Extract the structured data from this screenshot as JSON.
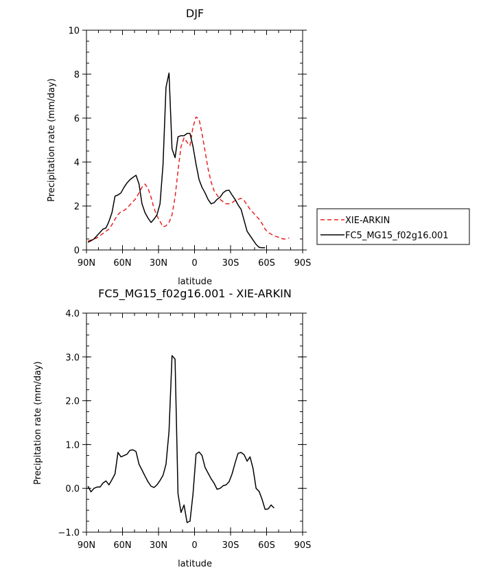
{
  "colors": {
    "obs": "#e8201c",
    "model": "#000000"
  },
  "chart_data": [
    {
      "type": "line",
      "title": "DJF",
      "xlabel": "latitude",
      "ylabel": "Precipitation rate (mm/day)",
      "xlim": [
        90,
        -90
      ],
      "ylim": [
        0,
        10
      ],
      "xticks": [
        {
          "value": 90,
          "label": "90N"
        },
        {
          "value": 60,
          "label": "60N"
        },
        {
          "value": 30,
          "label": "30N"
        },
        {
          "value": 0,
          "label": "0"
        },
        {
          "value": -30,
          "label": "30S"
        },
        {
          "value": -60,
          "label": "60S"
        },
        {
          "value": -90,
          "label": "90S"
        }
      ],
      "yticks": [
        {
          "value": 0,
          "label": "0"
        },
        {
          "value": 2,
          "label": "2"
        },
        {
          "value": 4,
          "label": "4"
        },
        {
          "value": 6,
          "label": "6"
        },
        {
          "value": 8,
          "label": "8"
        },
        {
          "value": 10,
          "label": "10"
        }
      ],
      "legend_position": "right",
      "series": [
        {
          "name": "XIE-ARKIN",
          "style": "dashed",
          "color": "#e8201c",
          "points": [
            [
              88.75,
              0.4
            ],
            [
              86.25,
              0.45
            ],
            [
              83.75,
              0.5
            ],
            [
              81.25,
              0.55
            ],
            [
              78.75,
              0.65
            ],
            [
              76.25,
              0.75
            ],
            [
              73.75,
              0.85
            ],
            [
              71.25,
              0.95
            ],
            [
              68.75,
              1.15
            ],
            [
              66.25,
              1.4
            ],
            [
              63.75,
              1.6
            ],
            [
              61.25,
              1.75
            ],
            [
              58.75,
              1.8
            ],
            [
              56.25,
              1.9
            ],
            [
              53.75,
              2.05
            ],
            [
              51.25,
              2.2
            ],
            [
              48.75,
              2.35
            ],
            [
              46.25,
              2.6
            ],
            [
              43.75,
              2.85
            ],
            [
              41.25,
              3.0
            ],
            [
              38.75,
              2.8
            ],
            [
              36.25,
              2.4
            ],
            [
              33.75,
              1.9
            ],
            [
              31.25,
              1.55
            ],
            [
              28.75,
              1.3
            ],
            [
              26.25,
              1.05
            ],
            [
              23.75,
              1.1
            ],
            [
              21.25,
              1.25
            ],
            [
              18.75,
              1.6
            ],
            [
              16.25,
              2.4
            ],
            [
              13.75,
              3.6
            ],
            [
              11.25,
              4.7
            ],
            [
              8.75,
              5.1
            ],
            [
              6.25,
              4.9
            ],
            [
              3.75,
              4.75
            ],
            [
              1.25,
              5.6
            ],
            [
              -1.25,
              6.05
            ],
            [
              -3.75,
              5.95
            ],
            [
              -6.25,
              5.3
            ],
            [
              -8.75,
              4.5
            ],
            [
              -11.25,
              3.7
            ],
            [
              -13.75,
              3.1
            ],
            [
              -16.25,
              2.7
            ],
            [
              -18.75,
              2.5
            ],
            [
              -21.25,
              2.3
            ],
            [
              -23.75,
              2.2
            ],
            [
              -26.25,
              2.1
            ],
            [
              -28.75,
              2.1
            ],
            [
              -31.25,
              2.15
            ],
            [
              -33.75,
              2.25
            ],
            [
              -36.25,
              2.3
            ],
            [
              -38.75,
              2.35
            ],
            [
              -41.25,
              2.25
            ],
            [
              -43.75,
              2.05
            ],
            [
              -46.25,
              1.85
            ],
            [
              -48.75,
              1.7
            ],
            [
              -51.25,
              1.55
            ],
            [
              -53.75,
              1.4
            ],
            [
              -56.25,
              1.2
            ],
            [
              -58.75,
              0.95
            ],
            [
              -61.25,
              0.8
            ],
            [
              -63.75,
              0.72
            ],
            [
              -66.25,
              0.65
            ],
            [
              -68.75,
              0.6
            ],
            [
              -71.25,
              0.55
            ],
            [
              -73.75,
              0.5
            ],
            [
              -76.25,
              0.5
            ],
            [
              -78.75,
              0.55
            ]
          ]
        },
        {
          "name": "FC5_MG15_f02g16.001",
          "style": "solid",
          "color": "#000000",
          "points": [
            [
              88.75,
              0.35
            ],
            [
              86.25,
              0.42
            ],
            [
              83.75,
              0.5
            ],
            [
              81.25,
              0.65
            ],
            [
              78.75,
              0.8
            ],
            [
              76.25,
              0.95
            ],
            [
              73.75,
              1.0
            ],
            [
              71.25,
              1.3
            ],
            [
              68.75,
              1.7
            ],
            [
              66.25,
              2.45
            ],
            [
              63.75,
              2.5
            ],
            [
              61.25,
              2.6
            ],
            [
              58.75,
              2.85
            ],
            [
              56.25,
              3.05
            ],
            [
              53.75,
              3.2
            ],
            [
              51.25,
              3.3
            ],
            [
              48.75,
              3.4
            ],
            [
              46.25,
              3.0
            ],
            [
              43.75,
              2.1
            ],
            [
              41.25,
              1.7
            ],
            [
              38.75,
              1.45
            ],
            [
              36.25,
              1.25
            ],
            [
              33.75,
              1.4
            ],
            [
              31.25,
              1.6
            ],
            [
              28.75,
              2.1
            ],
            [
              26.25,
              3.9
            ],
            [
              23.75,
              7.4
            ],
            [
              21.25,
              8.05
            ],
            [
              18.75,
              4.6
            ],
            [
              16.25,
              4.2
            ],
            [
              13.75,
              5.15
            ],
            [
              11.25,
              5.2
            ],
            [
              8.75,
              5.2
            ],
            [
              6.25,
              5.3
            ],
            [
              3.75,
              5.3
            ],
            [
              1.25,
              4.7
            ],
            [
              -1.25,
              3.9
            ],
            [
              -3.75,
              3.2
            ],
            [
              -6.25,
              2.85
            ],
            [
              -8.75,
              2.6
            ],
            [
              -11.25,
              2.3
            ],
            [
              -13.75,
              2.1
            ],
            [
              -16.25,
              2.15
            ],
            [
              -18.75,
              2.3
            ],
            [
              -21.25,
              2.4
            ],
            [
              -23.75,
              2.6
            ],
            [
              -26.25,
              2.7
            ],
            [
              -28.75,
              2.72
            ],
            [
              -31.25,
              2.5
            ],
            [
              -33.75,
              2.3
            ],
            [
              -36.25,
              2.05
            ],
            [
              -38.75,
              1.85
            ],
            [
              -41.25,
              1.35
            ],
            [
              -43.75,
              0.85
            ],
            [
              -46.25,
              0.65
            ],
            [
              -48.75,
              0.45
            ],
            [
              -51.25,
              0.25
            ],
            [
              -53.75,
              0.12
            ],
            [
              -56.25,
              0.1
            ],
            [
              -58.75,
              0.1
            ]
          ]
        }
      ]
    },
    {
      "type": "line",
      "title": "FC5_MG15_f02g16.001 - XIE-ARKIN",
      "xlabel": "latitude",
      "ylabel": "Precipitation rate (mm/day)",
      "xlim": [
        90,
        -90
      ],
      "ylim": [
        -1,
        4
      ],
      "xticks": [
        {
          "value": 90,
          "label": "90N"
        },
        {
          "value": 60,
          "label": "60N"
        },
        {
          "value": 30,
          "label": "30N"
        },
        {
          "value": 0,
          "label": "0"
        },
        {
          "value": -30,
          "label": "30S"
        },
        {
          "value": -60,
          "label": "60S"
        },
        {
          "value": -90,
          "label": "90S"
        }
      ],
      "yticks": [
        {
          "value": -1,
          "label": "−1.0"
        },
        {
          "value": 0,
          "label": "0.0"
        },
        {
          "value": 1,
          "label": "1.0"
        },
        {
          "value": 2,
          "label": "2.0"
        },
        {
          "value": 3,
          "label": "3.0"
        },
        {
          "value": 4,
          "label": "4.0"
        }
      ],
      "series": [
        {
          "style": "solid",
          "color": "#000000",
          "points": [
            [
              88.75,
              0.05
            ],
            [
              86.25,
              -0.08
            ],
            [
              83.75,
              0.0
            ],
            [
              81.25,
              0.03
            ],
            [
              78.75,
              0.03
            ],
            [
              76.25,
              0.12
            ],
            [
              73.75,
              0.17
            ],
            [
              71.25,
              0.08
            ],
            [
              68.75,
              0.2
            ],
            [
              66.25,
              0.33
            ],
            [
              63.75,
              0.82
            ],
            [
              61.25,
              0.72
            ],
            [
              58.75,
              0.75
            ],
            [
              56.25,
              0.78
            ],
            [
              53.75,
              0.87
            ],
            [
              51.25,
              0.88
            ],
            [
              48.75,
              0.84
            ],
            [
              46.25,
              0.55
            ],
            [
              43.75,
              0.42
            ],
            [
              41.25,
              0.28
            ],
            [
              38.75,
              0.15
            ],
            [
              36.25,
              0.05
            ],
            [
              33.75,
              0.02
            ],
            [
              31.25,
              0.08
            ],
            [
              28.75,
              0.18
            ],
            [
              26.25,
              0.3
            ],
            [
              23.75,
              0.55
            ],
            [
              21.25,
              1.3
            ],
            [
              18.75,
              3.03
            ],
            [
              16.25,
              2.95
            ],
            [
              13.75,
              -0.12
            ],
            [
              11.25,
              -0.55
            ],
            [
              8.75,
              -0.38
            ],
            [
              6.25,
              -0.78
            ],
            [
              3.75,
              -0.75
            ],
            [
              1.25,
              -0.12
            ],
            [
              -1.25,
              0.78
            ],
            [
              -3.75,
              0.83
            ],
            [
              -6.25,
              0.75
            ],
            [
              -8.75,
              0.48
            ],
            [
              -11.25,
              0.35
            ],
            [
              -13.75,
              0.22
            ],
            [
              -16.25,
              0.12
            ],
            [
              -18.75,
              -0.02
            ],
            [
              -21.25,
              0.0
            ],
            [
              -23.75,
              0.06
            ],
            [
              -26.25,
              0.08
            ],
            [
              -28.75,
              0.15
            ],
            [
              -31.25,
              0.33
            ],
            [
              -33.75,
              0.58
            ],
            [
              -36.25,
              0.8
            ],
            [
              -38.75,
              0.82
            ],
            [
              -41.25,
              0.77
            ],
            [
              -43.75,
              0.62
            ],
            [
              -46.25,
              0.72
            ],
            [
              -48.75,
              0.45
            ],
            [
              -51.25,
              0.0
            ],
            [
              -53.75,
              -0.07
            ],
            [
              -56.25,
              -0.25
            ],
            [
              -58.75,
              -0.48
            ],
            [
              -61.25,
              -0.47
            ],
            [
              -63.75,
              -0.38
            ],
            [
              -66.25,
              -0.45
            ]
          ]
        }
      ]
    }
  ]
}
